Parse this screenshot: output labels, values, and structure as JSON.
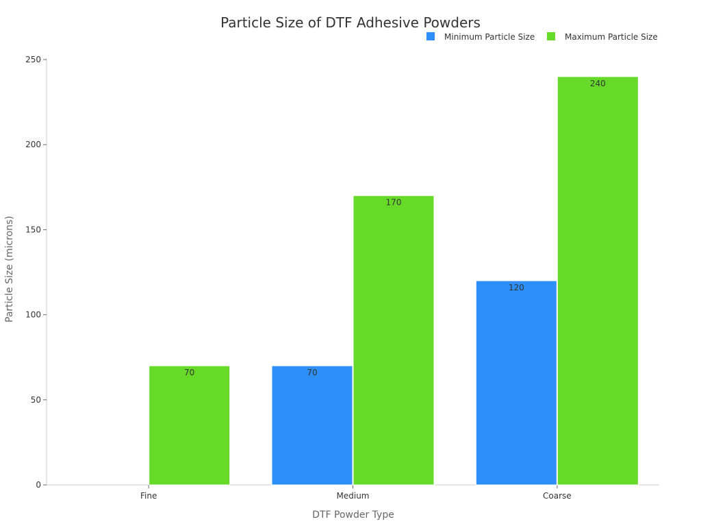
{
  "chart_data": {
    "type": "bar",
    "title": "Particle Size of DTF Adhesive Powders",
    "xlabel": "DTF Powder Type",
    "ylabel": "Particle Size (microns)",
    "categories": [
      "Fine",
      "Medium",
      "Coarse"
    ],
    "series": [
      {
        "name": "Minimum Particle Size",
        "values": [
          0,
          70,
          120
        ],
        "color": "#2d8ff7"
      },
      {
        "name": "Maximum Particle Size",
        "values": [
          70,
          170,
          240
        ],
        "color": "#66d929"
      }
    ],
    "ylim": [
      0,
      250
    ],
    "yticks": [
      0,
      50,
      100,
      150,
      200,
      250
    ],
    "grid": false,
    "legend_position": "top-right"
  }
}
